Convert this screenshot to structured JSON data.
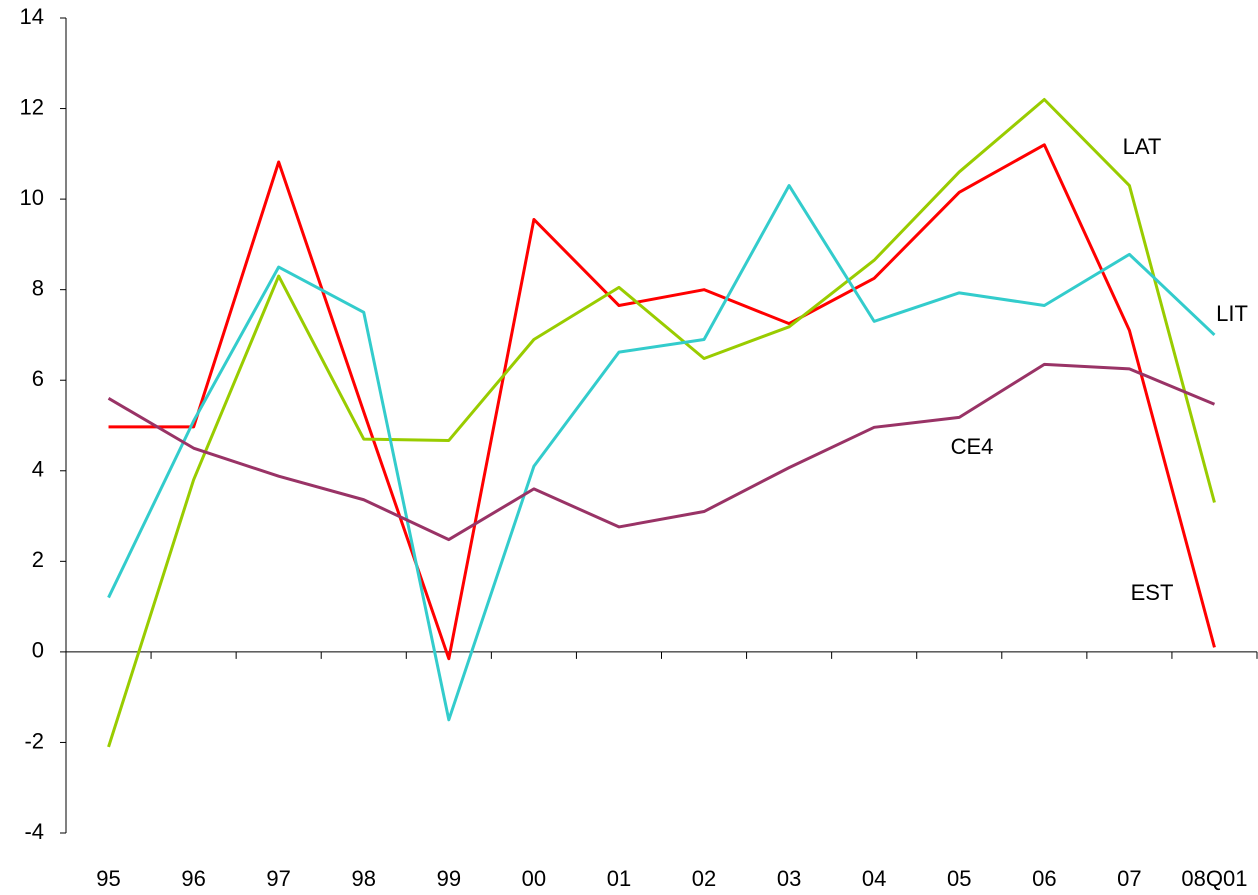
{
  "chart_data": {
    "type": "line",
    "categories": [
      "95",
      "96",
      "97",
      "98",
      "99",
      "00",
      "01",
      "02",
      "03",
      "04",
      "05",
      "06",
      "07",
      "08Q01"
    ],
    "series": [
      {
        "name": "EST",
        "color": "#ff0000",
        "values": [
          4.97,
          4.97,
          10.82,
          5.3,
          -0.15,
          9.55,
          7.65,
          8.0,
          7.25,
          8.25,
          10.15,
          11.2,
          7.1,
          0.1
        ]
      },
      {
        "name": "LAT",
        "color": "#99cc00",
        "values": [
          -2.1,
          3.8,
          8.3,
          4.7,
          4.67,
          6.9,
          8.05,
          6.48,
          7.18,
          8.65,
          10.6,
          12.2,
          10.3,
          3.3
        ]
      },
      {
        "name": "LIT",
        "color": "#33cccc",
        "values": [
          1.2,
          5.1,
          8.5,
          7.5,
          -1.5,
          4.1,
          6.62,
          6.9,
          10.3,
          7.3,
          7.93,
          7.65,
          8.78,
          7.0
        ]
      },
      {
        "name": "CE4",
        "color": "#993366",
        "values": [
          5.6,
          4.5,
          3.88,
          3.36,
          2.48,
          3.6,
          2.76,
          3.1,
          4.07,
          4.96,
          5.18,
          6.35,
          6.25,
          5.47
        ]
      }
    ],
    "ylim": [
      -4,
      14
    ],
    "yticks": [
      -4,
      -2,
      0,
      2,
      4,
      6,
      8,
      10,
      12,
      14
    ]
  }
}
